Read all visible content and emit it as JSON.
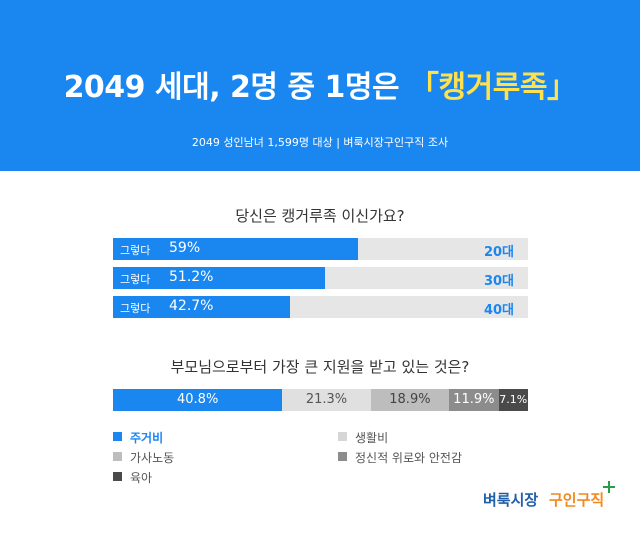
{
  "header": {
    "title_main": "2049 세대, 2명 중 1명은 ",
    "title_open": "「",
    "title_highlight": "캥거루족",
    "title_close": "」",
    "subtitle": "2049  성인남녀 1,599명 대상  |  벼룩시장구인구직 조사"
  },
  "colors": {
    "brand_blue": "#1a86f0",
    "highlight_yellow": "#ffe14d",
    "bar_track": "#e6e6e6"
  },
  "chart_data": [
    {
      "type": "bar",
      "orientation": "horizontal",
      "title": "당신은 캥거루족 이신가요?",
      "bar_label": "그렇다",
      "categories": [
        "20대",
        "30대",
        "40대"
      ],
      "values": [
        59,
        51.2,
        42.7
      ],
      "value_labels": [
        "59%",
        "51.2%",
        "42.7%"
      ],
      "unit": "%",
      "xlim": [
        0,
        100
      ]
    },
    {
      "type": "bar",
      "stacked": true,
      "title": "부모님으로부터 가장 큰 지원을 받고 있는 것은?",
      "series": [
        {
          "name": "주거비",
          "value": 40.8,
          "label": "40.8%",
          "color": "#1a86f0",
          "text_color": "#ffffff"
        },
        {
          "name": "생활비",
          "value": 21.3,
          "label": "21.3%",
          "color": "#e0e0e0",
          "text_color": "#555555"
        },
        {
          "name": "가사노동",
          "value": 18.9,
          "label": "18.9%",
          "color": "#bdbdbd",
          "text_color": "#444444"
        },
        {
          "name": "정신적 위로와 안전감",
          "value": 11.9,
          "label": "11.9%",
          "color": "#8c8c8c",
          "text_color": "#ffffff"
        },
        {
          "name": "육아",
          "value": 7.1,
          "label": "7.1%",
          "color": "#4a4a4a",
          "text_color": "#ffffff"
        }
      ],
      "legend_position": "bottom-left"
    }
  ],
  "logo": {
    "part1": "벼룩시장",
    "part2": "구인구직"
  }
}
